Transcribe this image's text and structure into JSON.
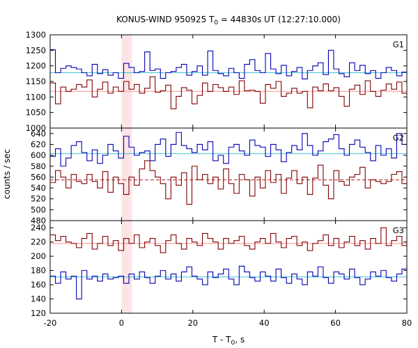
{
  "chart_data": {
    "type": "line",
    "title": "KONUS-WIND 950925 T",
    "title_sub": "0",
    "title_rest": " = 44830s UT (12:27:10.000)",
    "xlabel": "T - T",
    "xlabel_sub": "0",
    "xlabel_rest": ", s",
    "ylabel": "counts / sec",
    "xlim": [
      -20,
      80
    ],
    "xticks": [
      "-20",
      "0",
      "20",
      "40",
      "60",
      "80"
    ],
    "x_tick_values": [
      -20,
      0,
      20,
      40,
      60,
      80
    ],
    "highlight_region": [
      0,
      2.944
    ],
    "bin_width": 1.472,
    "bin_start": -20,
    "colors": {
      "band_red": "#800000",
      "band_blue": "#0000b4",
      "fit_red": "#ff9090",
      "fit_blue": "#40c0d8",
      "shade": "#fce4e6"
    },
    "panels": [
      {
        "label": "G1",
        "ylim": [
          1000,
          1300
        ],
        "yticks": [
          "1050",
          "1100",
          "1150",
          "1200",
          "1250",
          "1300"
        ],
        "ytick_values": [
          1050,
          1100,
          1150,
          1200,
          1250,
          1300
        ],
        "series": [
          {
            "color": "#0000b4",
            "fit": 1178,
            "fit_color": "#40c0d8",
            "fit_dashed": false,
            "values": [
              1252,
              1178,
              1192,
              1200,
              1195,
              1190,
              1178,
              1168,
              1205,
              1175,
              1188,
              1170,
              1178,
              1160,
              1208,
              1195,
              1178,
              1182,
              1245,
              1185,
              1190,
              1160,
              1178,
              1182,
              1195,
              1205,
              1170,
              1182,
              1200,
              1170,
              1248,
              1185,
              1175,
              1168,
              1192,
              1178,
              1160,
              1205,
              1220,
              1185,
              1178,
              1240,
              1190,
              1175,
              1202,
              1168,
              1182,
              1195,
              1158,
              1185,
              1200,
              1210,
              1172,
              1250,
              1190,
              1175,
              1165,
              1210,
              1185,
              1202,
              1175,
              1185,
              1160,
              1178,
              1195,
              1185,
              1168,
              1180,
              1190,
              1182,
              1175,
              1180,
              1165,
              1185,
              1180,
              1195,
              1240,
              1190,
              1200,
              1175,
              1190,
              1225,
              1185,
              1198,
              1178,
              1168,
              1178,
              1165,
              1175,
              1185,
              1145,
              1242,
              1195,
              1185,
              1162,
              1178,
              1132,
              1200,
              1188,
              1160,
              1172,
              1195,
              1125,
              1162,
              1178,
              1135,
              1205,
              1180
            ]
          },
          {
            "color": "#800000",
            "fit": 1118,
            "fit_color": "#ff9090",
            "fit_dashed": false,
            "values": [
              1145,
              1078,
              1132,
              1118,
              1125,
              1140,
              1132,
              1155,
              1100,
              1125,
              1148,
              1112,
              1132,
              1118,
              1150,
              1125,
              1140,
              1112,
              1128,
              1165,
              1115,
              1120,
              1138,
              1062,
              1102,
              1130,
              1122,
              1078,
              1105,
              1145,
              1118,
              1140,
              1130,
              1118,
              1132,
              1108,
              1152,
              1120,
              1122,
              1118,
              1080,
              1140,
              1128,
              1150,
              1102,
              1112,
              1128,
              1112,
              1118,
              1065,
              1132,
              1120,
              1142,
              1120,
              1130,
              1102,
              1070,
              1125,
              1138,
              1108,
              1152,
              1118,
              1102,
              1122,
              1142,
              1125,
              1148,
              1112,
              1105,
              1130,
              1122,
              1102,
              1135,
              1110,
              1100,
              1118,
              1095,
              1075,
              1130,
              1115,
              1110,
              1102,
              1088,
              1095,
              1122,
              1118,
              1138,
              1125,
              1110,
              1130,
              1140,
              1098,
              1130,
              1120,
              1072,
              1128,
              1140,
              1108,
              1068,
              1118,
              1128,
              1105,
              1060,
              1125,
              1132,
              1118,
              1128,
              1150
            ]
          }
        ]
      },
      {
        "label": "G2",
        "ylim": [
          480,
          650
        ],
        "yticks": [
          "480",
          "500",
          "520",
          "540",
          "560",
          "580",
          "600",
          "620",
          "640"
        ],
        "ytick_values": [
          480,
          500,
          520,
          540,
          560,
          580,
          600,
          620,
          640
        ],
        "series": [
          {
            "color": "#0000b4",
            "fit": 603,
            "fit_color": "#40c0d8",
            "fit_dashed": false,
            "values": [
              598,
              612,
              580,
              595,
              618,
              625,
              605,
              590,
              610,
              585,
              600,
              620,
              608,
              595,
              635,
              615,
              600,
              605,
              608,
              590,
              620,
              630,
              598,
              620,
              642,
              618,
              612,
              605,
              620,
              610,
              625,
              590,
              600,
              585,
              615,
              620,
              608,
              600,
              628,
              618,
              615,
              598,
              620,
              610,
              588,
              605,
              618,
              610,
              640,
              618,
              600,
              608,
              625,
              630,
              638,
              612,
              600,
              620,
              628,
              615,
              605,
              590,
              618,
              600,
              612,
              595,
              640,
              620,
              608,
              600,
              618,
              610,
              620,
              628,
              618,
              600,
              610,
              605,
              590,
              615,
              620,
              640,
              628,
              615,
              600,
              608,
              612,
              638,
              620,
              620,
              612,
              602,
              580,
              590,
              618,
              610,
              598,
              625,
              610,
              592,
              608,
              602,
              560,
              628,
              606,
              618,
              590,
              600
            ]
          },
          {
            "color": "#800000",
            "fit": 555,
            "fit_color": "#b02020",
            "fit_dashed": true,
            "values": [
              550,
              572,
              560,
              540,
              565,
              552,
              548,
              565,
              552,
              540,
              570,
              532,
              560,
              548,
              528,
              560,
              545,
              575,
              590,
              572,
              560,
              548,
              520,
              560,
              545,
              568,
              510,
              580,
              555,
              565,
              548,
              560,
              538,
              575,
              548,
              530,
              565,
              555,
              525,
              560,
              540,
              572,
              550,
              565,
              530,
              558,
              572,
              548,
              560,
              528,
              558,
              582,
              545,
              520,
              572,
              552,
              545,
              560,
              565,
              578,
              540,
              555,
              552,
              548,
              552,
              565,
              570,
              548,
              560,
              532,
              575,
              545,
              560,
              535,
              525,
              560,
              558,
              580,
              545,
              538,
              562,
              555,
              548,
              568,
              550,
              530,
              560,
              540,
              575,
              556,
              528,
              558,
              545,
              520,
              552,
              570,
              548,
              518,
              560,
              545,
              535,
              552,
              568,
              545,
              555,
              558,
              520,
              562
            ]
          }
        ]
      },
      {
        "label": "G3",
        "ylim": [
          120,
          250
        ],
        "yticks": [
          "120",
          "140",
          "160",
          "180",
          "200",
          "220",
          "240"
        ],
        "ytick_values": [
          120,
          140,
          160,
          180,
          200,
          220,
          240
        ],
        "series": [
          {
            "color": "#0000b4",
            "fit": 171,
            "fit_color": "#40c0d8",
            "fit_dashed": false,
            "values": [
              172,
              162,
              178,
              168,
              172,
              140,
              180,
              168,
              172,
              165,
              175,
              168,
              170,
              172,
              162,
              175,
              168,
              178,
              170,
              162,
              172,
              180,
              168,
              175,
              165,
              178,
              185,
              172,
              168,
              160,
              178,
              170,
              175,
              182,
              168,
              160,
              186,
              178,
              170,
              165,
              178,
              172,
              165,
              182,
              170,
              162,
              175,
              168,
              160,
              178,
              172,
              185,
              170,
              162,
              178,
              175,
              168,
              182,
              170,
              160,
              168,
              178,
              172,
              180,
              170,
              165,
              175,
              182,
              168,
              172,
              178,
              170,
              165,
              175,
              168,
              182,
              170,
              160,
              175,
              170,
              168,
              175,
              180,
              168,
              172,
              178,
              165,
              170,
              175,
              185,
              168,
              170,
              162,
              175,
              178,
              168,
              172,
              180,
              165,
              170,
              175,
              168,
              172,
              162,
              178,
              170,
              170,
              182
            ]
          },
          {
            "color": "#800000",
            "fit": 218,
            "fit_color": "#ff9090",
            "fit_dashed": false,
            "values": [
              230,
              222,
              228,
              220,
              218,
              212,
              225,
              232,
              210,
              218,
              228,
              215,
              222,
              208,
              225,
              218,
              230,
              212,
              220,
              225,
              215,
              205,
              222,
              230,
              218,
              210,
              225,
              220,
              215,
              232,
              225,
              220,
              210,
              225,
              218,
              222,
              228,
              215,
              210,
              220,
              225,
              218,
              232,
              220,
              212,
              225,
              228,
              215,
              220,
              208,
              218,
              222,
              230,
              215,
              225,
              212,
              220,
              228,
              215,
              222,
              210,
              225,
              218,
              240,
              215,
              222,
              228,
              215,
              218,
              210,
              225,
              220,
              228,
              215,
              222,
              218,
              235,
              212,
              220,
              228,
              215,
              225,
              218,
              208,
              222,
              230,
              218,
              212,
              225,
              220,
              228,
              215,
              222,
              210,
              225,
              218,
              212,
              228,
              220,
              215,
              222,
              208,
              225,
              218,
              228,
              215,
              222,
              212
            ]
          }
        ]
      }
    ]
  }
}
